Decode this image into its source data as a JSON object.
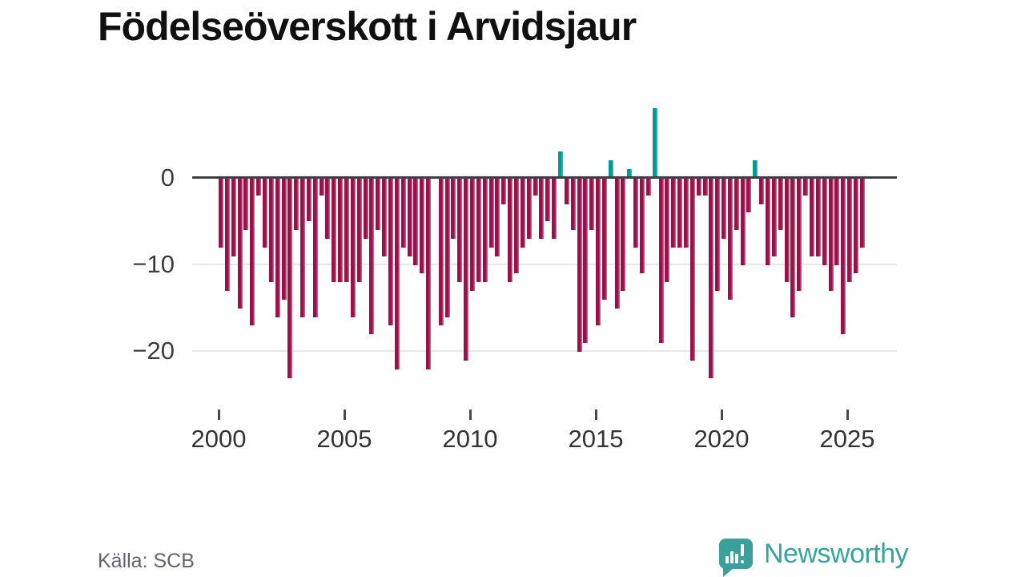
{
  "title": "Födelseöverskott i Arvidsjaur",
  "source": "Källa: SCB",
  "logo": {
    "text": "Newsworthy",
    "icon": "newsworthy-speech-bubble-chart-icon"
  },
  "colors": {
    "negative": "#9c1048",
    "positive": "#009a93",
    "axis": "#3d4045",
    "grid": "#e8e8ea",
    "logo": "#3ba09a",
    "logo_text": "#35a49b"
  },
  "chart_data": {
    "type": "bar",
    "title": "Födelseöverskott i Arvidsjaur",
    "x_unit": "quarter",
    "x_range": [
      "2000 Q1",
      "2025 Q3"
    ],
    "xlabel": "",
    "ylabel": "",
    "ylim": [
      -25,
      10
    ],
    "grid": "horizontal",
    "legend": "none",
    "xticks": [
      "2000",
      "2005",
      "2010",
      "2015",
      "2020",
      "2025"
    ],
    "yticks": [
      "0",
      "−10",
      "−20"
    ],
    "ytick_values": [
      0,
      -10,
      -20
    ],
    "values": [
      -8,
      -13,
      -9,
      -15,
      -6,
      -17,
      -2,
      -8,
      -12,
      -16,
      -14,
      -23,
      -6,
      -16,
      -5,
      -16,
      -2,
      -7,
      -12,
      -12,
      -12,
      -16,
      -12,
      -7,
      -18,
      -6,
      -9,
      -17,
      -22,
      -8,
      -9,
      -10,
      -11,
      -22,
      0,
      -17,
      -16,
      -7,
      -12,
      -21,
      -13,
      -12,
      -12,
      -8,
      -9,
      -3,
      -12,
      -11,
      -8,
      -7,
      -2,
      -7,
      -5,
      -7,
      3,
      -3,
      -6,
      -20,
      -19,
      -6,
      -17,
      -14,
      2,
      -15,
      -13,
      1,
      -8,
      -11,
      -2,
      8,
      -19,
      -12,
      -8,
      -8,
      -8,
      -21,
      -2,
      -2,
      -23,
      -13,
      -7,
      -14,
      -6,
      -10,
      -4,
      2,
      -3,
      -10,
      -9,
      -6,
      -12,
      -16,
      -13,
      -2,
      -9,
      -9,
      -10,
      -13,
      -10,
      -18,
      -12,
      -11,
      -8
    ]
  }
}
